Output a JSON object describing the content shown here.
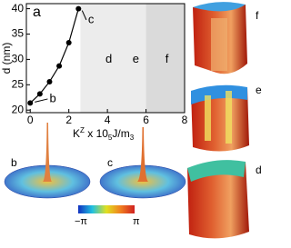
{
  "chart_data": {
    "type": "line",
    "panel_label": "a",
    "ylabel": "d (nm)",
    "xlabel_parts": [
      "K",
      "Z",
      " x 10",
      "5",
      "J/m",
      "3"
    ],
    "x": [
      0,
      0.5,
      1.0,
      1.5,
      2.0,
      2.5
    ],
    "series": [
      {
        "color": "#000000",
        "values": [
          21.4,
          23.2,
          25.6,
          28.7,
          33.3,
          40
        ]
      }
    ],
    "xlim": [
      -0.2,
      8
    ],
    "ylim": [
      19.5,
      41
    ],
    "xticks": [
      0,
      2,
      4,
      6,
      8
    ],
    "yticks": [
      20,
      25,
      30,
      35,
      40
    ],
    "regions": [
      {
        "x0": 2.6,
        "x1": 6,
        "color": "#ececec"
      },
      {
        "x0": 6,
        "x1": 8,
        "color": "#dadada"
      }
    ],
    "annotations": [
      {
        "text": "b",
        "x": 1.0,
        "y": 22.2
      },
      {
        "text": "c",
        "x": 3.0,
        "y": 37.8
      },
      {
        "text": "d",
        "x": 3.9,
        "y": 30
      },
      {
        "text": "e",
        "x": 5.3,
        "y": 30
      },
      {
        "text": "f",
        "x": 7.0,
        "y": 30
      }
    ]
  },
  "panels": {
    "b": "b",
    "c": "c",
    "f": "f",
    "e": "e",
    "d": "d",
    "colorbar_min": "−π",
    "colorbar_max": "π"
  }
}
